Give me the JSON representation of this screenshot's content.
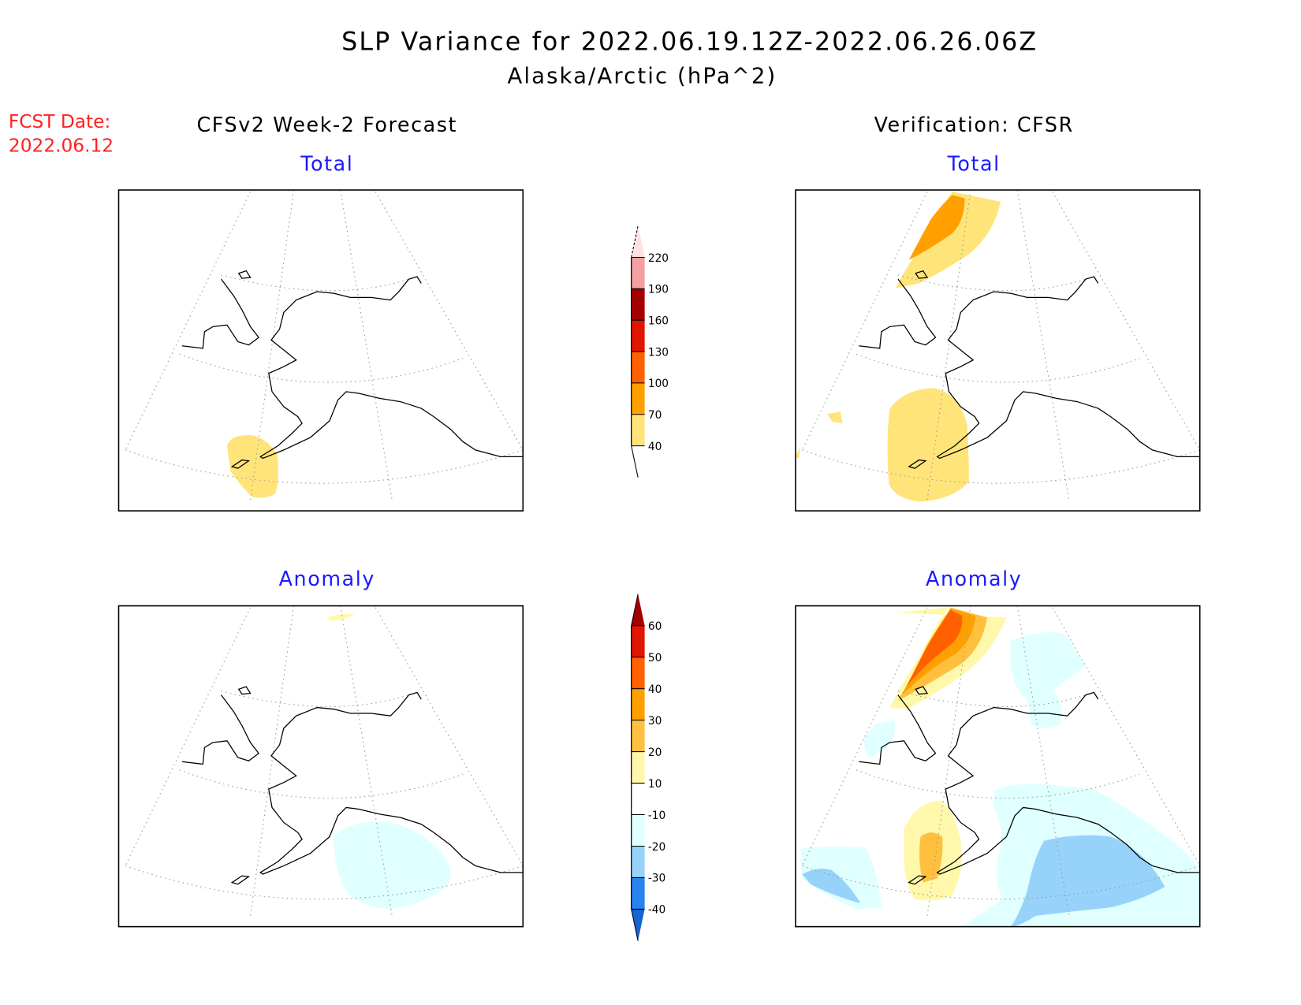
{
  "chart_data": {
    "type": "heatmap",
    "title": "SLP Variance for 2022.06.19.12Z-2022.06.26.06Z",
    "subtitle": "Alaska/Arctic (hPa^2)",
    "fcst_date_label": "FCST Date:",
    "fcst_date": "2022.06.12",
    "columns": [
      "CFSv2 Week-2 Forecast",
      "Verification: CFSR"
    ],
    "panels": [
      {
        "column": 0,
        "row": "Total",
        "title": "Total"
      },
      {
        "column": 1,
        "row": "Total",
        "title": "Total"
      },
      {
        "column": 0,
        "row": "Anomaly",
        "title": "Anomaly"
      },
      {
        "column": 1,
        "row": "Anomaly",
        "title": "Anomaly"
      }
    ],
    "colorbars": [
      {
        "name": "total",
        "levels": [
          "40",
          "70",
          "100",
          "130",
          "160",
          "190",
          "220"
        ],
        "colors": [
          "#FFE47A",
          "#FFA000",
          "#FF6000",
          "#E11600",
          "#A50000",
          "#F4A0A0"
        ],
        "over_color": "#FFE0E0",
        "under_color": "#FFFFFF"
      },
      {
        "name": "anomaly",
        "levels": [
          "-40",
          "-30",
          "-20",
          "-10",
          "10",
          "20",
          "30",
          "40",
          "50",
          "60"
        ],
        "colors": [
          "#2882F0",
          "#96D2FA",
          "#E0FFFF",
          "#FFFFFF",
          "#FFF8AA",
          "#FFC040",
          "#FFA000",
          "#FF6000",
          "#E11600"
        ],
        "over_color": "#A50000",
        "under_color": "#1464D2"
      }
    ]
  }
}
